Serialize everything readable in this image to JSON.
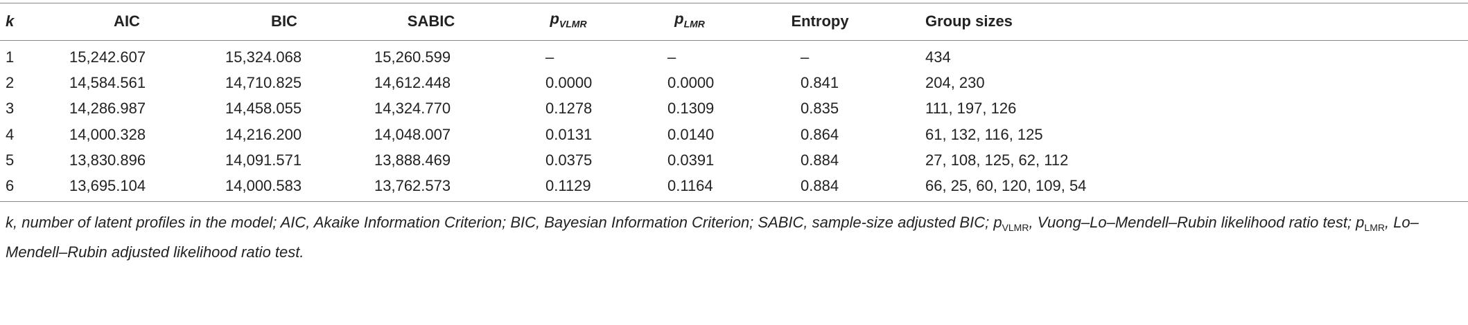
{
  "table": {
    "header": [
      "k",
      "AIC",
      "BIC",
      "SABIC",
      {
        "text": "p",
        "sub": "VLMR"
      },
      {
        "text": "p",
        "sub": "LMR"
      },
      "Entropy",
      "Group sizes"
    ],
    "rows": [
      [
        "1",
        "15,242.607",
        "15,324.068",
        "15,260.599",
        "–",
        "–",
        "–",
        "434"
      ],
      [
        "2",
        "14,584.561",
        "14,710.825",
        "14,612.448",
        "0.0000",
        "0.0000",
        "0.841",
        "204, 230"
      ],
      [
        "3",
        "14,286.987",
        "14,458.055",
        "14,324.770",
        "0.1278",
        "0.1309",
        "0.835",
        "111, 197, 126"
      ],
      [
        "4",
        "14,000.328",
        "14,216.200",
        "14,048.007",
        "0.0131",
        "0.0140",
        "0.864",
        "61, 132, 116, 125"
      ],
      [
        "5",
        "13,830.896",
        "14,091.571",
        "13,888.469",
        "0.0375",
        "0.0391",
        "0.884",
        "27, 108, 125, 62, 112"
      ],
      [
        "6",
        "13,695.104",
        "14,000.583",
        "13,762.573",
        "0.1129",
        "0.1164",
        "0.884",
        "66, 25, 60, 120, 109, 54"
      ]
    ],
    "footnote": [
      "k, number of latent profiles in the model; AIC, Akaike Information Criterion; BIC, Bayesian Information Criterion; SABIC, sample-size adjusted BIC; p",
      "VLMR",
      ", Vuong–Lo–Mendell–Rubin likelihood ratio test; p",
      "LMR",
      ", Lo–Mendell–Rubin adjusted likelihood ratio test."
    ]
  }
}
